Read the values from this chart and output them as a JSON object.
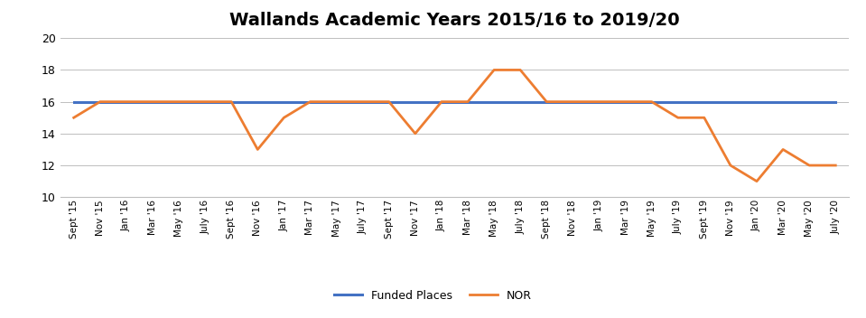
{
  "title": "Wallands Academic Years 2015/16 to 2019/20",
  "x_labels": [
    "Sept '15",
    "Nov '15",
    "Jan '16",
    "Mar '16",
    "May '16",
    "July '16",
    "Sept '16",
    "Nov '16",
    "Jan '17",
    "Mar '17",
    "May '17",
    "July '17",
    "Sept '17",
    "Nov '17",
    "Jan '18",
    "Mar '18",
    "May '18",
    "July '18",
    "Sept '18",
    "Nov '18",
    "Jan '19",
    "Mar '19",
    "May '19",
    "July '19",
    "Sept '19",
    "Nov '19",
    "Jan '20",
    "Mar '20",
    "May '20",
    "July '20"
  ],
  "funded_places": [
    16,
    16,
    16,
    16,
    16,
    16,
    16,
    16,
    16,
    16,
    16,
    16,
    16,
    16,
    16,
    16,
    16,
    16,
    16,
    16,
    16,
    16,
    16,
    16,
    16,
    16,
    16,
    16,
    16,
    16
  ],
  "nor": [
    15,
    16,
    16,
    16,
    16,
    16,
    16,
    13,
    15,
    16,
    16,
    16,
    16,
    14,
    16,
    16,
    18,
    18,
    16,
    16,
    16,
    16,
    16,
    15,
    15,
    12,
    11,
    13,
    12,
    12
  ],
  "funded_color": "#4472C4",
  "nor_color": "#ED7D31",
  "ylim": [
    10,
    20
  ],
  "yticks": [
    10,
    12,
    14,
    16,
    18,
    20
  ],
  "title_fontsize": 14,
  "legend_labels": [
    "Funded Places",
    "NOR"
  ],
  "background_color": "#FFFFFF",
  "grid_color": "#BFBFBF"
}
